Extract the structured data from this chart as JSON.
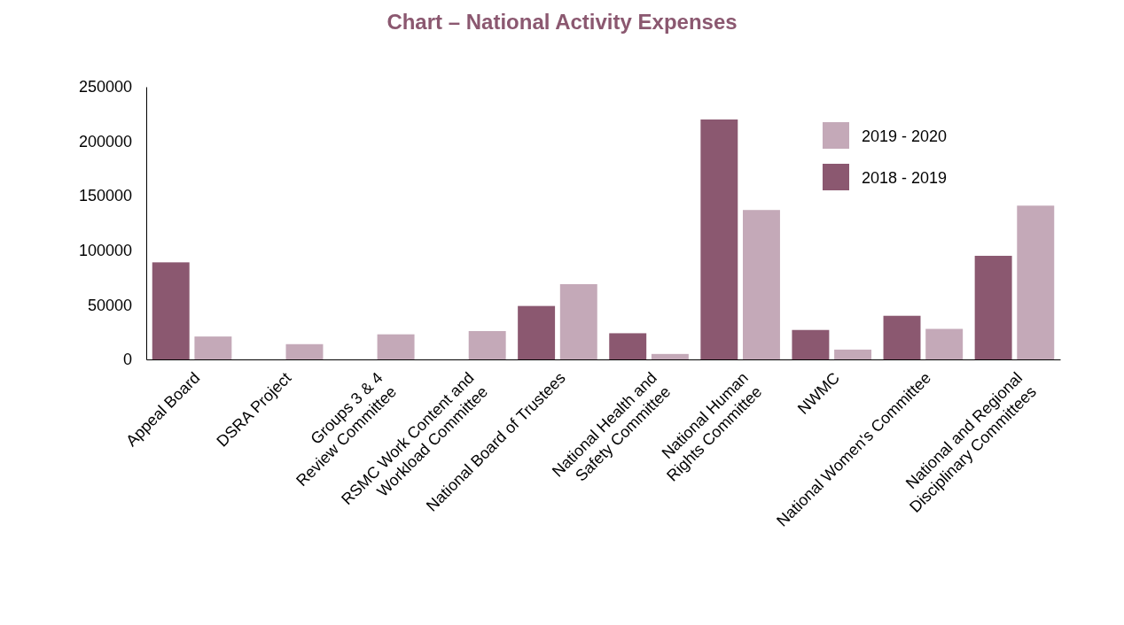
{
  "chart_data": {
    "type": "bar",
    "title": "Chart – National Activity Expenses",
    "categories": [
      "Appeal Board",
      "DSRA Project",
      "Groups 3 & 4 Review Committee",
      "RSMC Work Content and Workload Committee",
      "National Board of Trustees",
      "National Health and Safety Committee",
      "National Human Rights Committee",
      "NWMC",
      "National Women's Committee",
      "National and Regional Disciplinary Committees"
    ],
    "series": [
      {
        "name": "2018 - 2019",
        "color": "#8b5870",
        "values": [
          89000,
          null,
          null,
          null,
          49000,
          24000,
          220000,
          27000,
          40000,
          95000
        ]
      },
      {
        "name": "2019 - 2020",
        "color": "#c4a9b8",
        "values": [
          21000,
          14000,
          23000,
          26000,
          69000,
          5000,
          137000,
          9000,
          28000,
          141000
        ]
      }
    ],
    "ylim": [
      0,
      250000
    ],
    "yticks": [
      0,
      50000,
      100000,
      150000,
      200000,
      250000
    ],
    "grid": false,
    "legend": "top right"
  }
}
